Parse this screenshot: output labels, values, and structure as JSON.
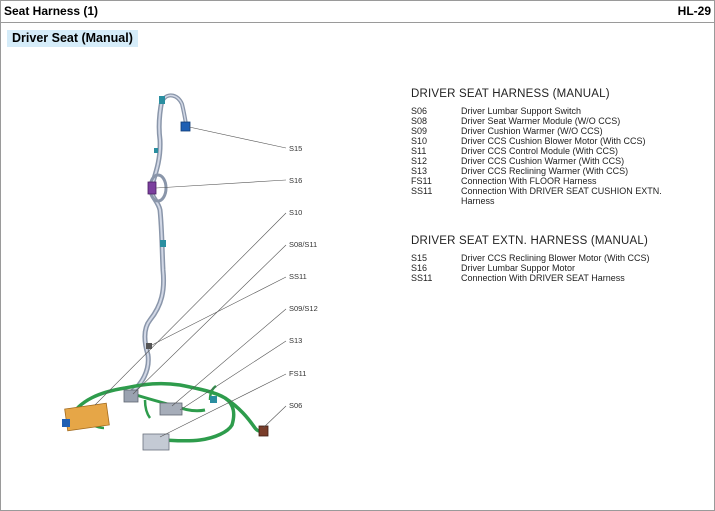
{
  "header": {
    "title": "Seat Harness (1)",
    "page_code": "HL-29"
  },
  "section": {
    "title": "Driver Seat (Manual)"
  },
  "diagram": {
    "callouts": [
      "S15",
      "S16",
      "S10",
      "S08/S11",
      "SS11",
      "S09/S12",
      "S13",
      "FS11",
      "S06"
    ]
  },
  "legend_harness": {
    "title": "DRIVER SEAT HARNESS (MANUAL)",
    "items": [
      {
        "code": "S06",
        "desc": "Driver Lumbar Support Switch"
      },
      {
        "code": "S08",
        "desc": "Driver Seat Warmer Module (W/O CCS)"
      },
      {
        "code": "S09",
        "desc": "Driver Cushion Warmer (W/O CCS)"
      },
      {
        "code": "S10",
        "desc": "Driver CCS Cushion Blower Motor (With CCS)"
      },
      {
        "code": "S11",
        "desc": "Driver CCS Control Module (With CCS)"
      },
      {
        "code": "S12",
        "desc": "Driver CCS Cushion Warmer (With CCS)"
      },
      {
        "code": "S13",
        "desc": "Driver CCS Reclining Warmer (With CCS)"
      },
      {
        "code": "FS11",
        "desc": "Connection With FLOOR Harness"
      },
      {
        "code": "SS11",
        "desc": "Connection With DRIVER SEAT CUSHION EXTN. Harness"
      }
    ]
  },
  "legend_extn": {
    "title": "DRIVER SEAT EXTN. HARNESS (MANUAL)",
    "items": [
      {
        "code": "S15",
        "desc": "Driver CCS Reclining Blower Motor (With CCS)"
      },
      {
        "code": "S16",
        "desc": "Driver Lumbar Suppor Motor"
      },
      {
        "code": "SS11",
        "desc": "Connection With DRIVER SEAT Harness"
      }
    ]
  }
}
